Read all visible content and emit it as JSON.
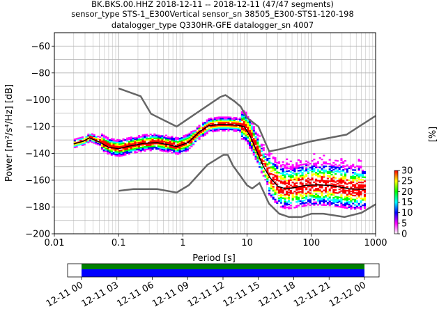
{
  "title_lines": [
    "BK.BKS.00.HHZ   2018-12-11 -- 2018-12-11  (47/47 segments)",
    "sensor_type STS-1_E300Vertical sensor_sn 38505_E300-STS1-120-198",
    "datalogger_type Q330HR-GFE datalogger_sn 4007"
  ],
  "chart_data": {
    "type": "heatmap",
    "xlabel": "Period [s]",
    "ylabel": "Power [m²/s⁴/Hz] [dB]",
    "xscale": "log",
    "xlim": [
      0.01,
      1000
    ],
    "ylim": [
      -200,
      -50
    ],
    "x_ticks": [
      0.01,
      0.1,
      1,
      10,
      100,
      1000
    ],
    "x_tick_labels": [
      "0.01",
      "0.1",
      "1",
      "10",
      "100",
      "1000"
    ],
    "y_ticks": [
      -200,
      -180,
      -160,
      -140,
      -120,
      -100,
      -80,
      -60
    ],
    "y_tick_labels": [
      "−200",
      "−180",
      "−160",
      "−140",
      "−120",
      "−100",
      "−80",
      "−60"
    ],
    "grid": true,
    "noise_models": [
      {
        "name": "high",
        "x": [
          0.1,
          0.22,
          0.32,
          0.8,
          3.8,
          4.6,
          6.3,
          7.9,
          10,
          15,
          22,
          32,
          100,
          354,
          1000
        ],
        "y": [
          -91.5,
          -97.4,
          -110.5,
          -120,
          -98,
          -96.5,
          -101,
          -105,
          -113.5,
          -120,
          -138.5,
          -137,
          -131,
          -126,
          -112
        ]
      },
      {
        "name": "low",
        "x": [
          0.1,
          0.17,
          0.4,
          0.8,
          1.24,
          2.4,
          4.3,
          5,
          6,
          10,
          12,
          15.6,
          21.9,
          31.6,
          45,
          70,
          101,
          154,
          328,
          600,
          1000
        ],
        "y": [
          -168,
          -166.7,
          -166.7,
          -169.2,
          -163.7,
          -148.6,
          -141.1,
          -141.1,
          -149,
          -163.8,
          -166.2,
          -162.1,
          -177.5,
          -185,
          -187.5,
          -187.5,
          -185,
          -185,
          -187.5,
          -184.4,
          -178
        ]
      }
    ],
    "mean_curve": {
      "x": [
        0.02,
        0.028,
        0.035,
        0.05,
        0.07,
        0.1,
        0.15,
        0.25,
        0.4,
        0.6,
        0.8,
        1.2,
        1.8,
        2.5,
        3.5,
        5,
        7,
        9,
        11,
        14,
        18,
        23,
        30,
        40,
        55,
        80,
        120,
        200,
        400,
        700
      ],
      "y": [
        -133,
        -131,
        -128.5,
        -131.5,
        -135.5,
        -136.5,
        -134.5,
        -132.5,
        -132,
        -133.5,
        -135,
        -132,
        -124,
        -119.5,
        -118.5,
        -118.5,
        -119,
        -120,
        -126.5,
        -138,
        -150,
        -158.5,
        -164.5,
        -166.5,
        -165.5,
        -164,
        -163.5,
        -164,
        -166.5,
        -167
      ]
    },
    "colorbar": {
      "label": "[%]",
      "ticks": [
        0,
        5,
        10,
        15,
        20,
        25,
        30
      ],
      "range": [
        0,
        30
      ],
      "colormap": "pqlx",
      "colors": [
        "#ffffff",
        "#ff00ff",
        "#0000ff",
        "#00ffff",
        "#00ff00",
        "#ffff00",
        "#ff0000"
      ]
    },
    "time_axis": {
      "tick_labels": [
        "12-11 00",
        "12-11 03",
        "12-11 06",
        "12-11 09",
        "12-11 12",
        "12-11 15",
        "12-11 18",
        "12-11 21",
        "12-12 00"
      ],
      "coverage_colors": {
        "data": "#0000ff",
        "processed": "#008000"
      }
    }
  }
}
